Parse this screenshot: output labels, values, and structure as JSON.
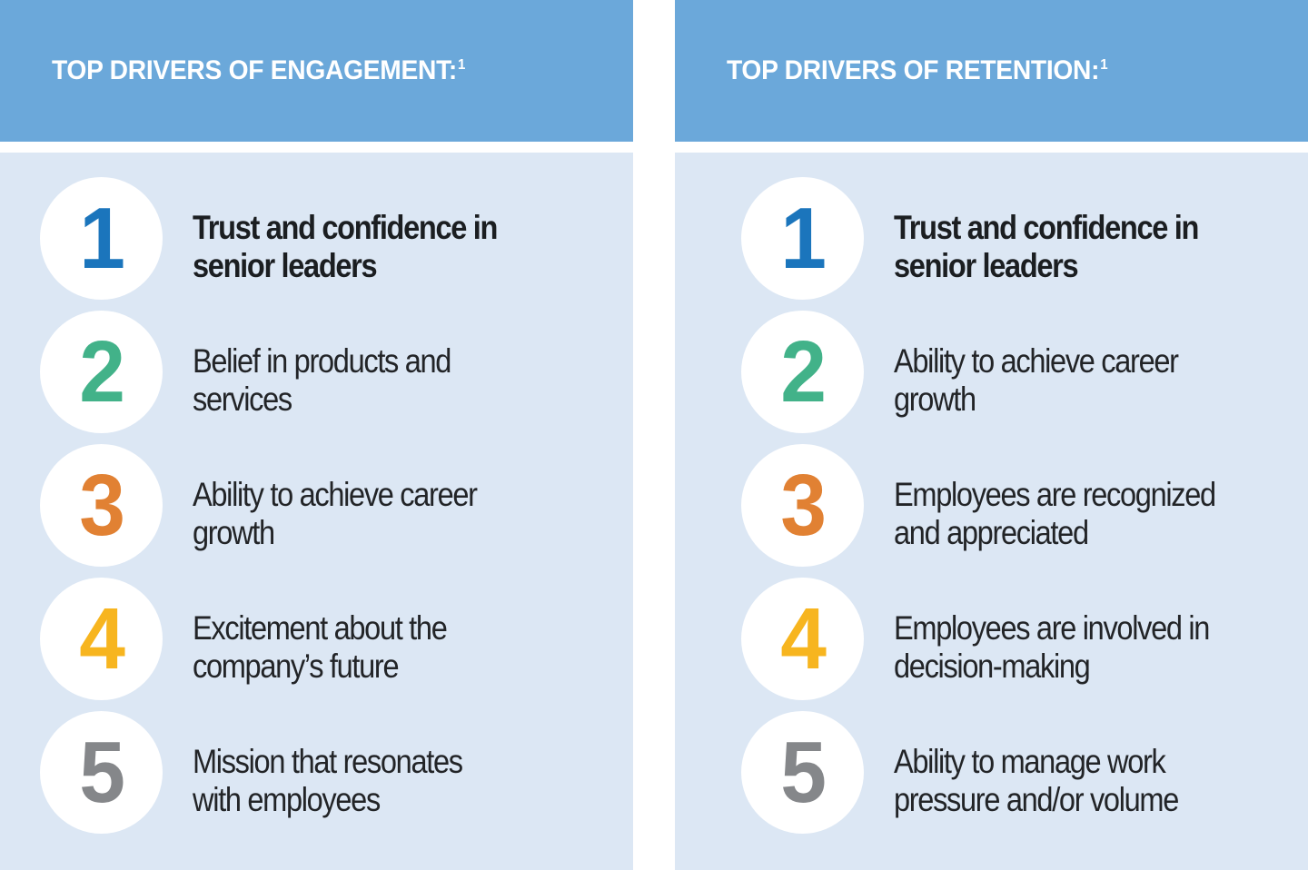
{
  "colors": {
    "page_bg": "#ffffff",
    "header_bg": "#6ba8da",
    "header_text": "#ffffff",
    "panel_bg": "#dce7f4",
    "circle_bg": "#ffffff",
    "item_text": "#222427",
    "item_text_bold": "#1b1e21",
    "rank1": "#1b75bc",
    "rank2": "#42b289",
    "rank3": "#e18133",
    "rank4": "#f7b51f",
    "rank5": "#85878a"
  },
  "panels": [
    {
      "id": "engagement",
      "title": "TOP DRIVERS OF ENGAGEMENT:",
      "footnote_marker": "1",
      "items": [
        {
          "number": "1",
          "number_color": "#1b75bc",
          "emphasis": true,
          "text": "Trust and confidence in\nsenior leaders"
        },
        {
          "number": "2",
          "number_color": "#42b289",
          "emphasis": false,
          "text": "Belief in products and\nservices"
        },
        {
          "number": "3",
          "number_color": "#e18133",
          "emphasis": false,
          "text": "Ability to achieve career\ngrowth"
        },
        {
          "number": "4",
          "number_color": "#f7b51f",
          "emphasis": false,
          "text": "Excitement about the\ncompany’s future"
        },
        {
          "number": "5",
          "number_color": "#85878a",
          "emphasis": false,
          "text": "Mission that resonates\nwith employees"
        }
      ]
    },
    {
      "id": "retention",
      "title": "TOP DRIVERS OF RETENTION:",
      "footnote_marker": "1",
      "items": [
        {
          "number": "1",
          "number_color": "#1b75bc",
          "emphasis": true,
          "text": "Trust and confidence in\nsenior leaders"
        },
        {
          "number": "2",
          "number_color": "#42b289",
          "emphasis": false,
          "text": "Ability to achieve career\ngrowth"
        },
        {
          "number": "3",
          "number_color": "#e18133",
          "emphasis": false,
          "text": "Employees are recognized\nand appreciated"
        },
        {
          "number": "4",
          "number_color": "#f7b51f",
          "emphasis": false,
          "text": "Employees are involved in\ndecision-making"
        },
        {
          "number": "5",
          "number_color": "#85878a",
          "emphasis": false,
          "text": "Ability to manage work\npressure and/or volume"
        }
      ]
    }
  ]
}
